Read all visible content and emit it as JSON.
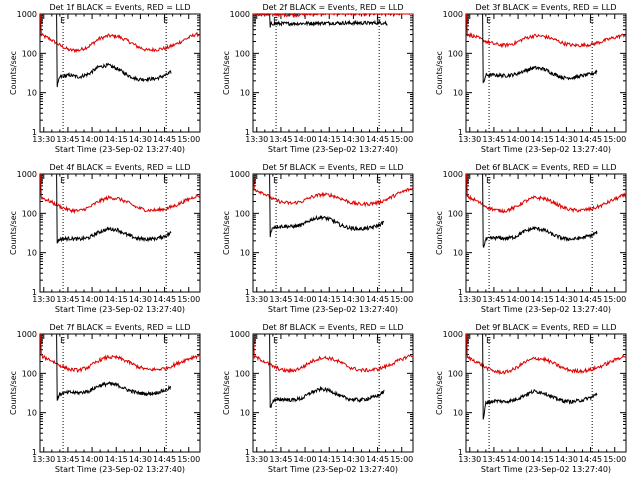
{
  "figure": {
    "x_tick_labels": [
      "13:30",
      "13:45",
      "14:00",
      "14:15",
      "14:30",
      "14:45",
      "15:00"
    ],
    "y_tick_labels": [
      "1",
      "10",
      "100",
      "1000"
    ],
    "y_axis_label": "Counts/sec",
    "x_axis_label": "Start Time (23-Sep-02 13:27:40)",
    "marker_labels": [
      "E",
      "E"
    ],
    "colors": {
      "events": "#000000",
      "lld": "#dd0000",
      "axes": "#000000",
      "background": "#ffffff"
    }
  },
  "chart_data": [
    {
      "type": "line",
      "title": "Det 1f BLACK = Events, RED = LLD",
      "xlabel": "Start Time (23-Sep-02 13:27:40)",
      "ylabel": "Counts/sec",
      "x_range": [
        "13:30",
        "15:07"
      ],
      "ylim": [
        1,
        1000
      ],
      "yscale": "log",
      "markers": [
        "13:42",
        "14:46"
      ],
      "series": [
        {
          "name": "LLD",
          "color": "#dd0000",
          "x": [
            "13:28",
            "13:34",
            "13:40",
            "13:46",
            "13:52",
            "13:58",
            "14:04",
            "14:10",
            "14:16",
            "14:22",
            "14:28",
            "14:34",
            "14:40",
            "14:46",
            "14:52",
            "14:58",
            "15:04",
            "15:07"
          ],
          "values": [
            300,
            230,
            160,
            120,
            120,
            150,
            230,
            280,
            270,
            210,
            150,
            120,
            125,
            135,
            170,
            230,
            300,
            300
          ]
        },
        {
          "name": "Events",
          "color": "#000000",
          "x": [
            "13:38",
            "13:40",
            "13:46",
            "13:52",
            "13:58",
            "14:04",
            "14:10",
            "14:16",
            "14:22",
            "14:28",
            "14:34",
            "14:40",
            "14:46",
            "14:49"
          ],
          "values": [
            13,
            25,
            28,
            25,
            30,
            45,
            50,
            40,
            28,
            22,
            22,
            23,
            28,
            33
          ]
        }
      ]
    },
    {
      "type": "line",
      "title": "Det 2f BLACK = Events, RED = LLD",
      "xlabel": "Start Time (23-Sep-02 13:27:40)",
      "ylabel": "Counts/sec",
      "x_range": [
        "13:30",
        "15:07"
      ],
      "ylim": [
        1,
        1000
      ],
      "yscale": "log",
      "markers": [
        "13:42",
        "14:46"
      ],
      "series": [
        {
          "name": "LLD",
          "color": "#dd0000",
          "x": [
            "13:28",
            "13:40",
            "13:52",
            "14:04",
            "14:16",
            "14:28",
            "14:40",
            "14:52",
            "15:04",
            "15:07"
          ],
          "values": [
            1000,
            980,
            950,
            1000,
            1050,
            1020,
            1000,
            1020,
            1050,
            1080
          ]
        },
        {
          "name": "Events",
          "color": "#000000",
          "x": [
            "13:38",
            "13:39",
            "13:52",
            "14:04",
            "14:16",
            "14:28",
            "14:40",
            "14:50",
            "14:51"
          ],
          "values": [
            400,
            570,
            570,
            580,
            590,
            590,
            590,
            600,
            500
          ]
        }
      ]
    },
    {
      "type": "line",
      "title": "Det 3f BLACK = Events, RED = LLD",
      "xlabel": "Start Time (23-Sep-02 13:27:40)",
      "ylabel": "Counts/sec",
      "x_range": [
        "13:30",
        "15:07"
      ],
      "ylim": [
        1,
        1000
      ],
      "yscale": "log",
      "markers": [
        "13:42",
        "14:46"
      ],
      "series": [
        {
          "name": "LLD",
          "color": "#dd0000",
          "x": [
            "13:28",
            "13:34",
            "13:40",
            "13:46",
            "13:52",
            "13:58",
            "14:04",
            "14:10",
            "14:16",
            "14:22",
            "14:28",
            "14:34",
            "14:40",
            "14:46",
            "14:52",
            "14:58",
            "15:04",
            "15:07"
          ],
          "values": [
            310,
            260,
            200,
            170,
            160,
            180,
            240,
            280,
            270,
            230,
            180,
            160,
            160,
            170,
            200,
            240,
            280,
            300
          ]
        },
        {
          "name": "Events",
          "color": "#000000",
          "x": [
            "13:38",
            "13:40",
            "13:46",
            "13:52",
            "13:58",
            "14:04",
            "14:10",
            "14:16",
            "14:22",
            "14:28",
            "14:34",
            "14:40",
            "14:46",
            "14:49"
          ],
          "values": [
            15,
            28,
            28,
            27,
            29,
            36,
            43,
            40,
            30,
            24,
            24,
            27,
            30,
            35
          ]
        }
      ]
    },
    {
      "type": "line",
      "title": "Det 4f BLACK = Events, RED = LLD",
      "xlabel": "Start Time (23-Sep-02 13:27:40)",
      "ylabel": "Counts/sec",
      "x_range": [
        "13:30",
        "15:07"
      ],
      "ylim": [
        1,
        1000
      ],
      "yscale": "log",
      "markers": [
        "13:42",
        "14:46"
      ],
      "series": [
        {
          "name": "LLD",
          "color": "#dd0000",
          "x": [
            "13:28",
            "13:34",
            "13:40",
            "13:46",
            "13:52",
            "13:58",
            "14:04",
            "14:10",
            "14:16",
            "14:22",
            "14:28",
            "14:34",
            "14:40",
            "14:46",
            "14:52",
            "14:58",
            "15:04",
            "15:07"
          ],
          "values": [
            260,
            200,
            150,
            120,
            115,
            140,
            200,
            250,
            240,
            190,
            140,
            120,
            120,
            130,
            160,
            210,
            270,
            280
          ]
        },
        {
          "name": "Events",
          "color": "#000000",
          "x": [
            "13:38",
            "13:40",
            "13:46",
            "13:52",
            "13:58",
            "14:04",
            "14:10",
            "14:16",
            "14:22",
            "14:28",
            "14:34",
            "14:40",
            "14:46",
            "14:49"
          ],
          "values": [
            18,
            22,
            23,
            22,
            24,
            33,
            40,
            38,
            28,
            23,
            22,
            23,
            27,
            32
          ]
        }
      ]
    },
    {
      "type": "line",
      "title": "Det 5f BLACK = Events, RED = LLD",
      "xlabel": "Start Time (23-Sep-02 13:27:40)",
      "ylabel": "Counts/sec",
      "x_range": [
        "13:30",
        "15:07"
      ],
      "ylim": [
        1,
        1000
      ],
      "yscale": "log",
      "markers": [
        "13:42",
        "14:46"
      ],
      "series": [
        {
          "name": "LLD",
          "color": "#dd0000",
          "x": [
            "13:28",
            "13:34",
            "13:40",
            "13:46",
            "13:52",
            "13:58",
            "14:04",
            "14:10",
            "14:16",
            "14:22",
            "14:28",
            "14:34",
            "14:40",
            "14:46",
            "14:52",
            "14:58",
            "15:04",
            "15:07"
          ],
          "values": [
            420,
            330,
            230,
            190,
            180,
            200,
            260,
            300,
            290,
            240,
            190,
            170,
            175,
            190,
            240,
            320,
            400,
            420
          ]
        },
        {
          "name": "Events",
          "color": "#000000",
          "x": [
            "13:38",
            "13:40",
            "13:46",
            "13:52",
            "13:58",
            "14:04",
            "14:10",
            "14:16",
            "14:22",
            "14:28",
            "14:34",
            "14:40",
            "14:46",
            "14:49"
          ],
          "values": [
            25,
            45,
            47,
            46,
            50,
            70,
            80,
            70,
            50,
            42,
            40,
            42,
            50,
            60
          ]
        }
      ]
    },
    {
      "type": "line",
      "title": "Det 6f BLACK = Events, RED = LLD",
      "xlabel": "Start Time (23-Sep-02 13:27:40)",
      "ylabel": "Counts/sec",
      "x_range": [
        "13:30",
        "15:07"
      ],
      "ylim": [
        1,
        1000
      ],
      "yscale": "log",
      "markers": [
        "13:42",
        "14:46"
      ],
      "series": [
        {
          "name": "LLD",
          "color": "#dd0000",
          "x": [
            "13:28",
            "13:34",
            "13:40",
            "13:46",
            "13:52",
            "13:58",
            "14:04",
            "14:10",
            "14:16",
            "14:22",
            "14:28",
            "14:34",
            "14:40",
            "14:46",
            "14:52",
            "14:58",
            "15:04",
            "15:07"
          ],
          "values": [
            270,
            210,
            150,
            120,
            115,
            140,
            200,
            250,
            240,
            190,
            140,
            120,
            120,
            130,
            160,
            210,
            270,
            290
          ]
        },
        {
          "name": "Events",
          "color": "#000000",
          "x": [
            "13:38",
            "13:40",
            "13:46",
            "13:52",
            "13:58",
            "14:04",
            "14:10",
            "14:16",
            "14:22",
            "14:28",
            "14:34",
            "14:40",
            "14:46",
            "14:49"
          ],
          "values": [
            12,
            22,
            24,
            23,
            25,
            35,
            42,
            38,
            28,
            23,
            22,
            24,
            28,
            33
          ]
        }
      ]
    },
    {
      "type": "line",
      "title": "Det 7f BLACK = Events, RED = LLD",
      "xlabel": "Start Time (23-Sep-02 13:27:40)",
      "ylabel": "Counts/sec",
      "x_range": [
        "13:30",
        "15:07"
      ],
      "ylim": [
        1,
        1000
      ],
      "yscale": "log",
      "markers": [
        "13:42",
        "14:46"
      ],
      "series": [
        {
          "name": "LLD",
          "color": "#dd0000",
          "x": [
            "13:28",
            "13:34",
            "13:40",
            "13:46",
            "13:52",
            "13:58",
            "14:04",
            "14:10",
            "14:16",
            "14:22",
            "14:28",
            "14:34",
            "14:40",
            "14:46",
            "14:52",
            "14:58",
            "15:04",
            "15:07"
          ],
          "values": [
            280,
            220,
            160,
            125,
            120,
            145,
            210,
            260,
            250,
            200,
            150,
            125,
            125,
            135,
            170,
            220,
            270,
            280
          ]
        },
        {
          "name": "Events",
          "color": "#000000",
          "x": [
            "13:38",
            "13:40",
            "13:46",
            "13:52",
            "13:58",
            "14:04",
            "14:10",
            "14:16",
            "14:22",
            "14:28",
            "14:34",
            "14:40",
            "14:46",
            "14:49"
          ],
          "values": [
            20,
            30,
            33,
            32,
            35,
            48,
            55,
            50,
            38,
            32,
            30,
            32,
            38,
            45
          ]
        }
      ]
    },
    {
      "type": "line",
      "title": "Det 8f BLACK = Events, RED = LLD",
      "xlabel": "Start Time (23-Sep-02 13:27:40)",
      "ylabel": "Counts/sec",
      "x_range": [
        "13:30",
        "15:07"
      ],
      "ylim": [
        1,
        1000
      ],
      "yscale": "log",
      "markers": [
        "13:42",
        "14:46"
      ],
      "series": [
        {
          "name": "LLD",
          "color": "#dd0000",
          "x": [
            "13:28",
            "13:34",
            "13:40",
            "13:46",
            "13:52",
            "13:58",
            "14:04",
            "14:10",
            "14:16",
            "14:22",
            "14:28",
            "14:34",
            "14:40",
            "14:46",
            "14:52",
            "14:58",
            "15:04",
            "15:07"
          ],
          "values": [
            270,
            210,
            150,
            120,
            115,
            140,
            200,
            250,
            240,
            190,
            140,
            120,
            120,
            130,
            160,
            210,
            270,
            290
          ]
        },
        {
          "name": "Events",
          "color": "#000000",
          "x": [
            "13:38",
            "13:40",
            "13:46",
            "13:52",
            "13:58",
            "14:04",
            "14:10",
            "14:16",
            "14:22",
            "14:28",
            "14:34",
            "14:40",
            "14:46",
            "14:49"
          ],
          "values": [
            12,
            20,
            22,
            21,
            23,
            33,
            40,
            36,
            26,
            22,
            21,
            23,
            28,
            35
          ]
        }
      ]
    },
    {
      "type": "line",
      "title": "Det 9f BLACK = Events, RED = LLD",
      "xlabel": "Start Time (23-Sep-02 13:27:40)",
      "ylabel": "Counts/sec",
      "x_range": [
        "13:30",
        "15:07"
      ],
      "ylim": [
        1,
        1000
      ],
      "yscale": "log",
      "markers": [
        "13:42",
        "14:46"
      ],
      "series": [
        {
          "name": "LLD",
          "color": "#dd0000",
          "x": [
            "13:28",
            "13:34",
            "13:40",
            "13:46",
            "13:52",
            "13:58",
            "14:04",
            "14:10",
            "14:16",
            "14:22",
            "14:28",
            "14:34",
            "14:40",
            "14:46",
            "14:52",
            "14:58",
            "15:04",
            "15:07"
          ],
          "values": [
            260,
            200,
            140,
            110,
            105,
            130,
            190,
            240,
            230,
            180,
            135,
            115,
            115,
            125,
            155,
            200,
            260,
            280
          ]
        },
        {
          "name": "Events",
          "color": "#000000",
          "x": [
            "13:38",
            "13:40",
            "13:46",
            "13:52",
            "13:58",
            "14:04",
            "14:10",
            "14:16",
            "14:22",
            "14:28",
            "14:34",
            "14:40",
            "14:46",
            "14:49"
          ],
          "values": [
            5,
            18,
            20,
            19,
            21,
            28,
            35,
            32,
            24,
            20,
            19,
            21,
            25,
            30
          ]
        }
      ]
    }
  ]
}
